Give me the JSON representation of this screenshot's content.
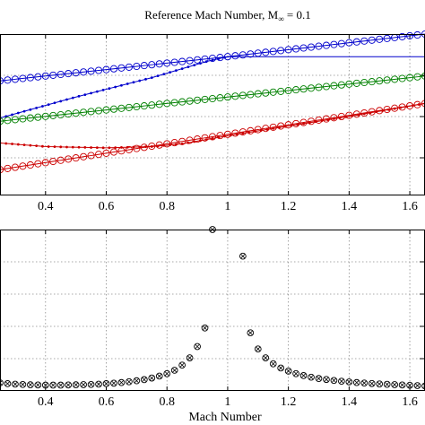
{
  "chart_data": [
    {
      "type": "line",
      "title_main": "Reference Mach Number, M",
      "title_sub": "∞",
      "title_tail": " = 0.1",
      "xlabel": "",
      "ylabel": "",
      "xlim": [
        0.25,
        1.65
      ],
      "ylim": [
        0,
        1
      ],
      "xticks": [
        0.4,
        0.6,
        0.8,
        1.0,
        1.2,
        1.4,
        1.6
      ],
      "xtick_labels": [
        "0.4",
        "0.6",
        "0.8",
        "1",
        "1.2",
        "1.4",
        "1.6"
      ],
      "grid": true,
      "series": [
        {
          "color": "#0000cc",
          "marker": "open-circle",
          "x": [
            0.25,
            1.0,
            1.65
          ],
          "y": [
            0.71,
            0.86,
            1.0
          ]
        },
        {
          "color": "#0000cc",
          "marker": "dot",
          "x": [
            0.25,
            0.5,
            0.75,
            0.93,
            1.0
          ],
          "y": [
            0.48,
            0.61,
            0.73,
            0.83,
            0.86
          ]
        },
        {
          "color": "#008000",
          "marker": "open-circle",
          "x": [
            0.25,
            1.65
          ],
          "y": [
            0.46,
            0.74
          ]
        },
        {
          "color": "#cc0000",
          "marker": "dot",
          "x": [
            0.25,
            0.4,
            0.6,
            0.75,
            0.85,
            1.0,
            1.2,
            1.4,
            1.65
          ],
          "y": [
            0.325,
            0.303,
            0.295,
            0.303,
            0.32,
            0.37,
            0.43,
            0.49,
            0.57
          ]
        },
        {
          "color": "#cc0000",
          "marker": "open-circle",
          "x": [
            0.25,
            0.8,
            1.65
          ],
          "y": [
            0.16,
            0.32,
            0.57
          ]
        }
      ]
    },
    {
      "type": "scatter",
      "xlabel": "Mach Number",
      "ylabel": "",
      "xlim": [
        0.25,
        1.65
      ],
      "ylim": [
        0,
        1
      ],
      "xticks": [
        0.4,
        0.6,
        0.8,
        1.0,
        1.2,
        1.4,
        1.6
      ],
      "xtick_labels": [
        "0.4",
        "0.6",
        "0.8",
        "1",
        "1.2",
        "1.4",
        "1.6"
      ],
      "grid": true,
      "series": [
        {
          "color": "#000000",
          "marker": "open-circle",
          "x": [
            0.25,
            0.275,
            0.3,
            0.325,
            0.35,
            0.375,
            0.4,
            0.425,
            0.45,
            0.475,
            0.5,
            0.525,
            0.55,
            0.575,
            0.6,
            0.625,
            0.65,
            0.675,
            0.7,
            0.725,
            0.75,
            0.775,
            0.8,
            0.825,
            0.85,
            0.875,
            0.9,
            0.925,
            0.95,
            1.05,
            1.075,
            1.1,
            1.125,
            1.15,
            1.175,
            1.2,
            1.225,
            1.25,
            1.275,
            1.3,
            1.325,
            1.35,
            1.375,
            1.4,
            1.425,
            1.45,
            1.475,
            1.5,
            1.525,
            1.55,
            1.575,
            1.6,
            1.625,
            1.65
          ],
          "y": [
            0.05,
            0.045,
            0.042,
            0.04,
            0.038,
            0.037,
            0.036,
            0.036,
            0.036,
            0.037,
            0.038,
            0.039,
            0.04,
            0.042,
            0.045,
            0.048,
            0.052,
            0.057,
            0.063,
            0.07,
            0.08,
            0.092,
            0.107,
            0.128,
            0.16,
            0.205,
            0.275,
            0.39,
            1.0,
            0.835,
            0.36,
            0.26,
            0.205,
            0.168,
            0.142,
            0.123,
            0.107,
            0.095,
            0.085,
            0.077,
            0.071,
            0.065,
            0.06,
            0.056,
            0.052,
            0.049,
            0.046,
            0.043,
            0.041,
            0.039,
            0.037,
            0.035,
            0.033,
            0.031
          ]
        }
      ]
    }
  ]
}
